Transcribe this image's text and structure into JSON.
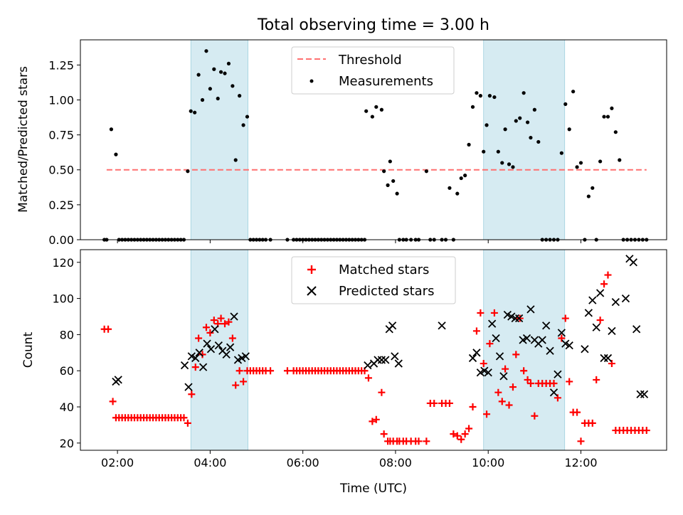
{
  "chart_data": [
    {
      "type": "scatter",
      "title": "Total observing time = 3.00 h",
      "xlabel": "",
      "ylabel": "Matched/Predicted stars",
      "xlim": [
        "01:12",
        "13:51"
      ],
      "ylim": [
        0,
        1.43
      ],
      "yticks": [
        0,
        0.25,
        0.5,
        0.75,
        1.0,
        1.25
      ],
      "yticklabels": [
        "0.00",
        "0.25",
        "0.50",
        "0.75",
        "1.00",
        "1.25"
      ],
      "shaded_intervals": [
        [
          "03:35",
          "04:49"
        ],
        [
          "09:54",
          "11:39"
        ]
      ],
      "legend": {
        "position": "upper center",
        "entries": [
          "Threshold",
          "Measurements"
        ]
      },
      "series": [
        {
          "name": "Threshold",
          "kind": "dashed-line",
          "color": "#ff7070",
          "x": [
            "01:46",
            "13:25"
          ],
          "y": [
            0.5,
            0.5
          ]
        },
        {
          "name": "Measurements",
          "kind": "dots",
          "color": "#000000",
          "x": [
            "01:43",
            "01:46",
            "01:52",
            "01:58",
            "02:02",
            "02:06",
            "02:10",
            "02:14",
            "02:18",
            "02:22",
            "02:26",
            "02:30",
            "02:34",
            "02:38",
            "02:42",
            "02:46",
            "02:50",
            "02:54",
            "02:58",
            "03:02",
            "03:06",
            "03:10",
            "03:14",
            "03:18",
            "03:22",
            "03:26",
            "03:31",
            "03:35",
            "03:40",
            "03:45",
            "03:50",
            "03:55",
            "04:00",
            "04:05",
            "04:10",
            "04:14",
            "04:19",
            "04:24",
            "04:29",
            "04:33",
            "04:38",
            "04:43",
            "04:48",
            "04:52",
            "04:56",
            "05:00",
            "05:04",
            "05:08",
            "05:12",
            "05:18",
            "05:40",
            "05:48",
            "05:52",
            "05:56",
            "06:00",
            "06:04",
            "06:08",
            "06:12",
            "06:16",
            "06:20",
            "06:24",
            "06:28",
            "06:32",
            "06:36",
            "06:40",
            "06:44",
            "06:48",
            "06:52",
            "06:56",
            "07:00",
            "07:04",
            "07:08",
            "07:12",
            "07:16",
            "07:20",
            "07:22",
            "07:30",
            "07:35",
            "07:42",
            "07:45",
            "07:50",
            "07:53",
            "07:57",
            "08:02",
            "08:05",
            "08:10",
            "08:14",
            "08:20",
            "08:26",
            "08:30",
            "08:40",
            "08:45",
            "08:50",
            "09:00",
            "09:05",
            "09:10",
            "09:15",
            "09:20",
            "09:25",
            "09:30",
            "09:35",
            "09:40",
            "09:45",
            "09:50",
            "09:54",
            "09:58",
            "10:02",
            "10:08",
            "10:13",
            "10:18",
            "10:22",
            "10:27",
            "10:32",
            "10:36",
            "10:41",
            "10:46",
            "10:51",
            "10:55",
            "11:00",
            "11:05",
            "11:10",
            "11:15",
            "11:20",
            "11:25",
            "11:30",
            "11:35",
            "11:40",
            "11:45",
            "11:50",
            "11:55",
            "12:00",
            "12:05",
            "12:10",
            "12:15",
            "12:20",
            "12:25",
            "12:30",
            "12:35",
            "12:40",
            "12:45",
            "12:50",
            "12:55",
            "13:00",
            "13:05",
            "13:10",
            "13:15",
            "13:20",
            "13:25"
          ],
          "y": [
            0.0,
            0.0,
            0.79,
            0.61,
            0.0,
            0.0,
            0.0,
            0.0,
            0.0,
            0.0,
            0.0,
            0.0,
            0.0,
            0.0,
            0.0,
            0.0,
            0.0,
            0.0,
            0.0,
            0.0,
            0.0,
            0.0,
            0.0,
            0.0,
            0.0,
            0.0,
            0.49,
            0.92,
            0.91,
            1.18,
            1.0,
            1.35,
            1.08,
            1.22,
            1.01,
            1.2,
            1.19,
            1.26,
            1.1,
            0.57,
            1.03,
            0.82,
            0.88,
            0.0,
            0.0,
            0.0,
            0.0,
            0.0,
            0.0,
            0.0,
            0.0,
            0.0,
            0.0,
            0.0,
            0.0,
            0.0,
            0.0,
            0.0,
            0.0,
            0.0,
            0.0,
            0.0,
            0.0,
            0.0,
            0.0,
            0.0,
            0.0,
            0.0,
            0.0,
            0.0,
            0.0,
            0.0,
            0.0,
            0.0,
            0.0,
            0.92,
            0.88,
            0.95,
            0.93,
            0.49,
            0.39,
            0.56,
            0.42,
            0.33,
            0.0,
            0.0,
            0.0,
            0.0,
            0.0,
            0.0,
            0.49,
            0.0,
            0.0,
            0.0,
            0.0,
            0.37,
            0.0,
            0.33,
            0.44,
            0.46,
            0.68,
            0.95,
            1.05,
            1.03,
            0.63,
            0.82,
            1.03,
            1.02,
            0.63,
            0.55,
            0.79,
            0.54,
            0.52,
            0.85,
            0.87,
            1.05,
            0.84,
            0.73,
            0.93,
            0.7,
            0.0,
            0.0,
            0.0,
            0.0,
            0.0,
            0.62,
            0.97,
            0.79,
            1.06,
            0.52,
            0.55,
            0.0,
            0.31,
            0.37,
            0.0,
            0.56,
            0.88,
            0.88,
            0.94,
            0.77,
            0.57,
            0.0,
            0.0,
            0.0,
            0.0,
            0.0,
            0.0,
            0.0
          ]
        }
      ]
    },
    {
      "type": "scatter",
      "title": "",
      "xlabel": "Time (UTC)",
      "ylabel": "Count",
      "xlim": [
        "01:12",
        "13:51"
      ],
      "ylim": [
        16,
        127
      ],
      "yticks": [
        20,
        40,
        60,
        80,
        100,
        120
      ],
      "yticklabels": [
        "20",
        "40",
        "60",
        "80",
        "100",
        "120"
      ],
      "xticks": [
        "02:00",
        "04:00",
        "06:00",
        "08:00",
        "10:00",
        "12:00"
      ],
      "xticklabels": [
        "02:00",
        "04:00",
        "06:00",
        "08:00",
        "10:00",
        "12:00"
      ],
      "shaded_intervals": [
        [
          "03:35",
          "04:49"
        ],
        [
          "09:54",
          "11:39"
        ]
      ],
      "legend": {
        "position": "upper center",
        "entries": [
          "Matched stars",
          "Predicted stars"
        ]
      },
      "series": [
        {
          "name": "Matched stars",
          "kind": "plus",
          "color": "#ff0000",
          "x": [
            "01:43",
            "01:48",
            "01:54",
            "01:58",
            "02:02",
            "02:06",
            "02:10",
            "02:14",
            "02:18",
            "02:22",
            "02:26",
            "02:30",
            "02:34",
            "02:38",
            "02:42",
            "02:46",
            "02:50",
            "02:54",
            "02:58",
            "03:02",
            "03:06",
            "03:10",
            "03:14",
            "03:18",
            "03:22",
            "03:26",
            "03:31",
            "03:36",
            "03:41",
            "03:45",
            "03:50",
            "03:55",
            "04:00",
            "04:05",
            "04:10",
            "04:14",
            "04:19",
            "04:24",
            "04:29",
            "04:33",
            "04:38",
            "04:43",
            "04:48",
            "04:52",
            "04:56",
            "05:00",
            "05:04",
            "05:08",
            "05:12",
            "05:18",
            "05:40",
            "05:48",
            "05:52",
            "05:56",
            "06:00",
            "06:04",
            "06:08",
            "06:12",
            "06:16",
            "06:20",
            "06:24",
            "06:28",
            "06:32",
            "06:36",
            "06:40",
            "06:44",
            "06:48",
            "06:52",
            "06:56",
            "07:00",
            "07:04",
            "07:08",
            "07:12",
            "07:16",
            "07:20",
            "07:25",
            "07:30",
            "07:35",
            "07:42",
            "07:45",
            "07:50",
            "07:53",
            "07:57",
            "08:02",
            "08:05",
            "08:10",
            "08:14",
            "08:20",
            "08:26",
            "08:30",
            "08:40",
            "08:45",
            "08:50",
            "09:00",
            "09:05",
            "09:10",
            "09:15",
            "09:20",
            "09:25",
            "09:30",
            "09:35",
            "09:40",
            "09:45",
            "09:50",
            "09:54",
            "09:58",
            "10:02",
            "10:08",
            "10:13",
            "10:18",
            "10:22",
            "10:27",
            "10:32",
            "10:36",
            "10:41",
            "10:46",
            "10:51",
            "10:55",
            "11:00",
            "11:05",
            "11:10",
            "11:15",
            "11:20",
            "11:25",
            "11:30",
            "11:35",
            "11:40",
            "11:45",
            "11:50",
            "11:55",
            "12:00",
            "12:05",
            "12:10",
            "12:15",
            "12:20",
            "12:25",
            "12:30",
            "12:35",
            "12:40",
            "12:45",
            "12:50",
            "12:55",
            "13:00",
            "13:05",
            "13:10",
            "13:15",
            "13:20",
            "13:25"
          ],
          "y": [
            83,
            83,
            43,
            34,
            34,
            34,
            34,
            34,
            34,
            34,
            34,
            34,
            34,
            34,
            34,
            34,
            34,
            34,
            34,
            34,
            34,
            34,
            34,
            34,
            34,
            34,
            31,
            47,
            62,
            78,
            69,
            84,
            81,
            88,
            86,
            89,
            86,
            87,
            78,
            52,
            60,
            54,
            60,
            60,
            60,
            60,
            60,
            60,
            60,
            60,
            60,
            60,
            60,
            60,
            60,
            60,
            60,
            60,
            60,
            60,
            60,
            60,
            60,
            60,
            60,
            60,
            60,
            60,
            60,
            60,
            60,
            60,
            60,
            60,
            60,
            56,
            32,
            33,
            48,
            25,
            21,
            21,
            21,
            21,
            21,
            21,
            21,
            21,
            21,
            21,
            21,
            42,
            42,
            42,
            42,
            42,
            25,
            24,
            22,
            25,
            28,
            40,
            82,
            92,
            64,
            36,
            75,
            92,
            48,
            43,
            61,
            41,
            51,
            69,
            89,
            60,
            55,
            53,
            35,
            53,
            53,
            53,
            53,
            53,
            45,
            78,
            89,
            54,
            37,
            37,
            21,
            31,
            31,
            31,
            55,
            88,
            108,
            113,
            64,
            27,
            27,
            27,
            27,
            27,
            27,
            27,
            27,
            27
          ],
          "note_x_count_mismatch": ""
        },
        {
          "name": "Predicted stars",
          "kind": "x",
          "color": "#000000",
          "x": [
            "01:58",
            "02:01",
            "03:27",
            "03:32",
            "03:36",
            "03:41",
            "03:46",
            "03:51",
            "03:56",
            "04:01",
            "04:06",
            "04:11",
            "04:16",
            "04:21",
            "04:26",
            "04:31",
            "04:36",
            "04:41",
            "04:46",
            "07:24",
            "07:32",
            "07:37",
            "07:42",
            "07:47",
            "07:52",
            "07:56",
            "07:59",
            "08:04",
            "09:00",
            "09:40",
            "09:45",
            "09:50",
            "09:55",
            "10:00",
            "10:05",
            "10:10",
            "10:15",
            "10:20",
            "10:25",
            "10:30",
            "10:35",
            "10:40",
            "10:45",
            "10:50",
            "10:55",
            "11:00",
            "11:05",
            "11:10",
            "11:15",
            "11:20",
            "11:25",
            "11:30",
            "11:35",
            "11:40",
            "11:45",
            "12:05",
            "12:10",
            "12:15",
            "12:20",
            "12:25",
            "12:30",
            "12:35",
            "12:40",
            "12:45",
            "12:58",
            "13:03",
            "13:08",
            "13:12",
            "13:17",
            "13:22"
          ],
          "y": [
            54,
            55,
            63,
            51,
            68,
            67,
            70,
            62,
            75,
            72,
            83,
            74,
            71,
            69,
            73,
            90,
            66,
            67,
            68,
            63,
            64,
            66,
            66,
            66,
            83,
            85,
            68,
            64,
            85,
            67,
            70,
            59,
            60,
            59,
            86,
            78,
            68,
            57,
            91,
            90,
            89,
            89,
            77,
            78,
            94,
            77,
            75,
            77,
            85,
            71,
            48,
            58,
            81,
            75,
            74,
            72,
            92,
            99,
            84,
            103,
            67,
            67,
            82,
            98,
            100,
            122,
            120,
            83,
            47,
            47
          ],
          "note_x_count_mismatch": ""
        }
      ]
    }
  ]
}
